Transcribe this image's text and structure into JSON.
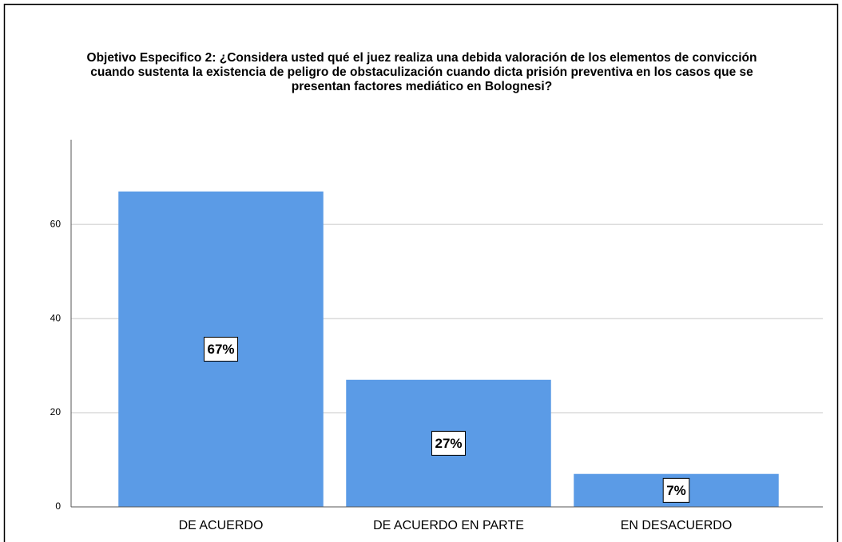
{
  "chart_data": {
    "type": "bar",
    "title": [
      "Objetivo Especifico 2: ¿Considera usted qué el juez realiza una debida valoración de los elementos de convicción",
      "cuando sustenta la existencia de peligro de obstaculización cuando dicta prisión preventiva en los casos que se",
      "presentan factores mediático en Bolognesi?"
    ],
    "categories": [
      "DE ACUERDO",
      "DE ACUERDO EN PARTE",
      "EN DESACUERDO"
    ],
    "values": [
      67,
      27,
      7
    ],
    "value_labels": [
      "67%",
      "27%",
      "7%"
    ],
    "color": "#5b9be6",
    "ylim": [
      0,
      78
    ],
    "yticks": [
      0,
      20,
      40,
      60
    ],
    "grid": true
  }
}
